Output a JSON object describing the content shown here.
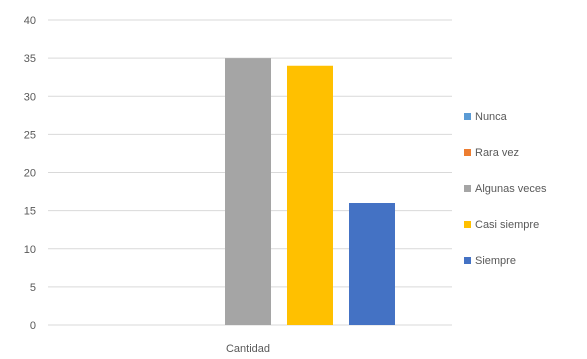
{
  "chart_data": {
    "type": "bar",
    "categories": [
      "Cantidad"
    ],
    "series": [
      {
        "name": "Nunca",
        "values": [
          0
        ],
        "color": "#5B9BD5"
      },
      {
        "name": "Rara vez",
        "values": [
          0
        ],
        "color": "#ED7D31"
      },
      {
        "name": "Algunas veces",
        "values": [
          35
        ],
        "color": "#A5A5A5"
      },
      {
        "name": "Casi siempre",
        "values": [
          34
        ],
        "color": "#FFC000"
      },
      {
        "name": "Siempre",
        "values": [
          16
        ],
        "color": "#4472C4"
      }
    ],
    "yticks": [
      "0",
      "5",
      "10",
      "15",
      "20",
      "25",
      "30",
      "35",
      "40"
    ],
    "ylim": [
      0,
      40
    ],
    "grid": true,
    "legend_position": "right"
  }
}
